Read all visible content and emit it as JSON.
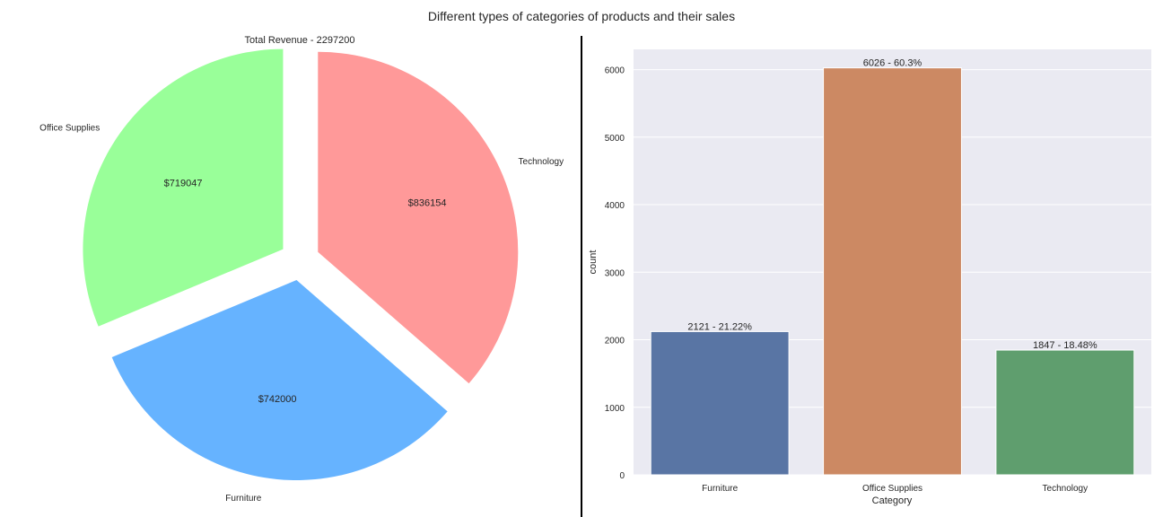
{
  "figure": {
    "title": "Different types of categories of products and their sales"
  },
  "chart_data": [
    {
      "type": "pie",
      "title": "Total Revenue - 2297200",
      "labels": [
        "Office Supplies",
        "Furniture",
        "Technology"
      ],
      "values": [
        719047,
        742000,
        836154
      ],
      "value_labels": [
        "$719047",
        "$742000",
        "$836154"
      ],
      "colors": [
        "#99ff99",
        "#66b3ff",
        "#ff9999"
      ],
      "explode": [
        0.1,
        0.1,
        0.1
      ]
    },
    {
      "type": "bar",
      "categories": [
        "Furniture",
        "Office Supplies",
        "Technology"
      ],
      "values": [
        2121,
        6026,
        1847
      ],
      "bar_labels": [
        "2121 - 21.22%",
        "6026 - 60.3%",
        "1847 - 18.48%"
      ],
      "colors": [
        "#5975a4",
        "#cc8963",
        "#5f9e6e"
      ],
      "xlabel": "Category",
      "ylabel": "count",
      "ylim": [
        0,
        6300
      ],
      "yticks": [
        0,
        1000,
        2000,
        3000,
        4000,
        5000,
        6000
      ],
      "grid": true,
      "background": "#eaeaf2"
    }
  ]
}
